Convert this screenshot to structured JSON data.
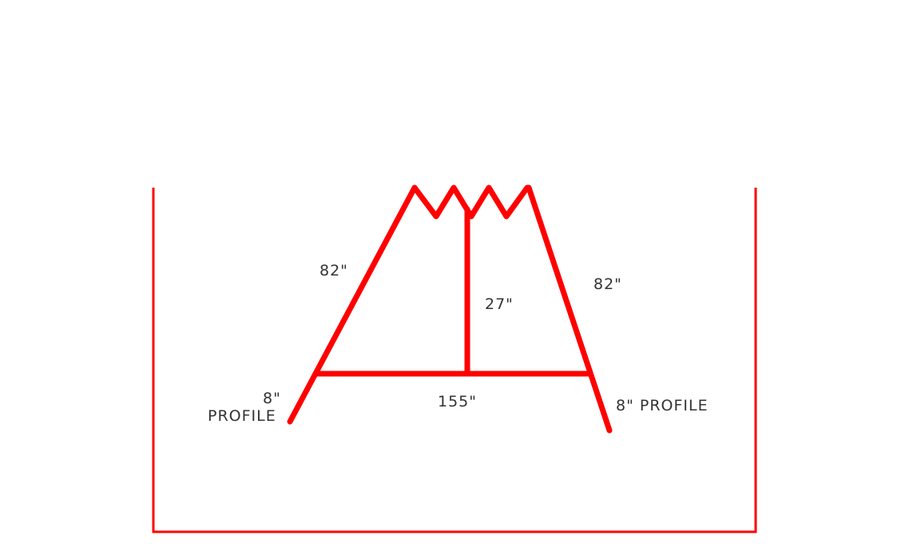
{
  "diagram": {
    "line_color": "#ff0000",
    "text_color": "#333333",
    "labels": {
      "left_rafter": "82\"",
      "right_rafter": "82\"",
      "king_post": "27\"",
      "bottom_chord": "155\"",
      "left_overhang_size": "8\"",
      "left_overhang_word": "PROFILE",
      "right_overhang": "8\" PROFILE"
    }
  }
}
